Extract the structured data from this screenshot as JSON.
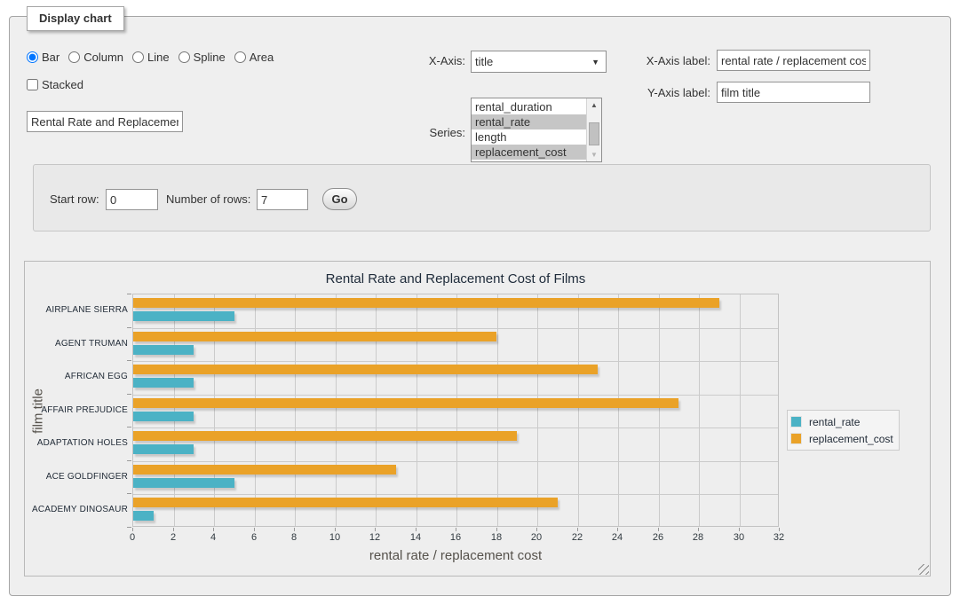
{
  "panel": {
    "legend": "Display chart"
  },
  "controls": {
    "chart_types": [
      {
        "label": "Bar",
        "selected": true
      },
      {
        "label": "Column",
        "selected": false
      },
      {
        "label": "Line",
        "selected": false
      },
      {
        "label": "Spline",
        "selected": false
      },
      {
        "label": "Area",
        "selected": false
      }
    ],
    "stacked_label": "Stacked",
    "stacked_checked": false,
    "chart_title_input_value": "Rental Rate and Replacemer",
    "x_axis": {
      "label": "X-Axis:",
      "value": "title"
    },
    "series_select": {
      "label": "Series:",
      "options": [
        "rental_duration",
        "rental_rate",
        "length",
        "replacement_cost"
      ],
      "selected": [
        "rental_rate",
        "replacement_cost"
      ]
    },
    "x_axis_label_field": {
      "label": "X-Axis label:",
      "value": "rental rate / replacement cost"
    },
    "y_axis_label_field": {
      "label": "Y-Axis label:",
      "value": "film title"
    }
  },
  "rows_box": {
    "start_row_label": "Start row:",
    "start_row_value": "0",
    "num_rows_label": "Number of rows:",
    "num_rows_value": "7",
    "go_label": "Go"
  },
  "chart_data": {
    "type": "bar",
    "orientation": "horizontal",
    "title": "Rental Rate and Replacement Cost of Films",
    "categories": [
      "AIRPLANE SIERRA",
      "AGENT TRUMAN",
      "AFRICAN EGG",
      "AFFAIR PREJUDICE",
      "ADAPTATION HOLES",
      "ACE GOLDFINGER",
      "ACADEMY DINOSAUR"
    ],
    "series": [
      {
        "name": "rental_rate",
        "color": "#4bb2c5",
        "values": [
          4.99,
          2.99,
          2.99,
          2.99,
          2.99,
          4.99,
          0.99
        ]
      },
      {
        "name": "replacement_cost",
        "color": "#EAA228",
        "values": [
          28.99,
          17.99,
          22.99,
          26.99,
          18.99,
          12.99,
          20.99
        ]
      }
    ],
    "xlabel": "rental rate / replacement cost",
    "ylabel": "film title",
    "xlim": [
      0,
      32
    ],
    "xticks": [
      0,
      2,
      4,
      6,
      8,
      10,
      12,
      14,
      16,
      18,
      20,
      22,
      24,
      26,
      28,
      30,
      32
    ],
    "grid": true,
    "legend_position": "right"
  }
}
